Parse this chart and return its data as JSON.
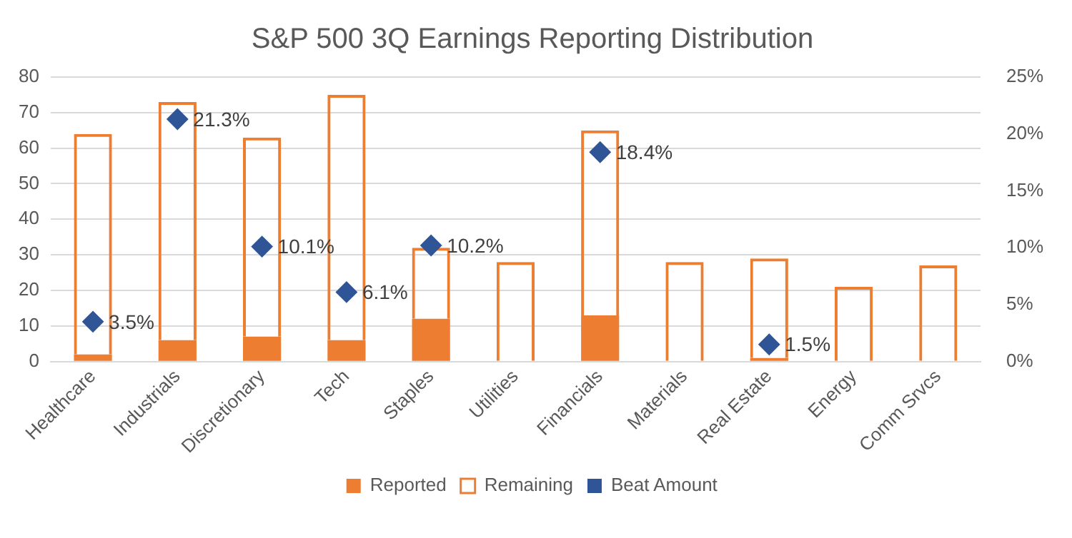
{
  "chart_data": {
    "type": "bar",
    "title": "S&P 500 3Q Earnings Reporting Distribution",
    "categories": [
      "Healthcare",
      "Industrials",
      "Discretionary",
      "Tech",
      "Staples",
      "Utilities",
      "Financials",
      "Materials",
      "Real Estate",
      "Energy",
      "Comm Srvcs"
    ],
    "stacked": true,
    "series": [
      {
        "name": "Reported",
        "color": "#ed7d31",
        "values": [
          2,
          6,
          7,
          6,
          12,
          0,
          13,
          0,
          1,
          0,
          0
        ]
      },
      {
        "name": "Remaining",
        "color": "#ed7d31",
        "values": [
          62,
          67,
          56,
          69,
          20,
          28,
          52,
          28,
          28,
          21,
          27
        ]
      },
      {
        "name": "Beat Amount",
        "type": "scatter",
        "axis": "y2",
        "marker": "diamond",
        "color": "#2f5597",
        "x": [
          "Healthcare",
          "Industrials",
          "Discretionary",
          "Tech",
          "Staples",
          "Financials",
          "Real Estate"
        ],
        "values": [
          3.5,
          21.3,
          10.1,
          6.1,
          10.2,
          18.4,
          1.5
        ],
        "value_labels": [
          "3.5%",
          "21.3%",
          "10.1%",
          "6.1%",
          "10.2%",
          "18.4%",
          "1.5%"
        ]
      }
    ],
    "ylim": [
      0,
      80
    ],
    "yticks": [
      0,
      10,
      20,
      30,
      40,
      50,
      60,
      70,
      80
    ],
    "y2lim": [
      0,
      25
    ],
    "y2ticks": [
      {
        "value": 0,
        "label": "0%"
      },
      {
        "value": 5,
        "label": "5%"
      },
      {
        "value": 10,
        "label": "10%"
      },
      {
        "value": 15,
        "label": "15%"
      },
      {
        "value": 20,
        "label": "20%"
      },
      {
        "value": 25,
        "label": "25%"
      }
    ],
    "grid": "y",
    "legend": "bottom"
  }
}
